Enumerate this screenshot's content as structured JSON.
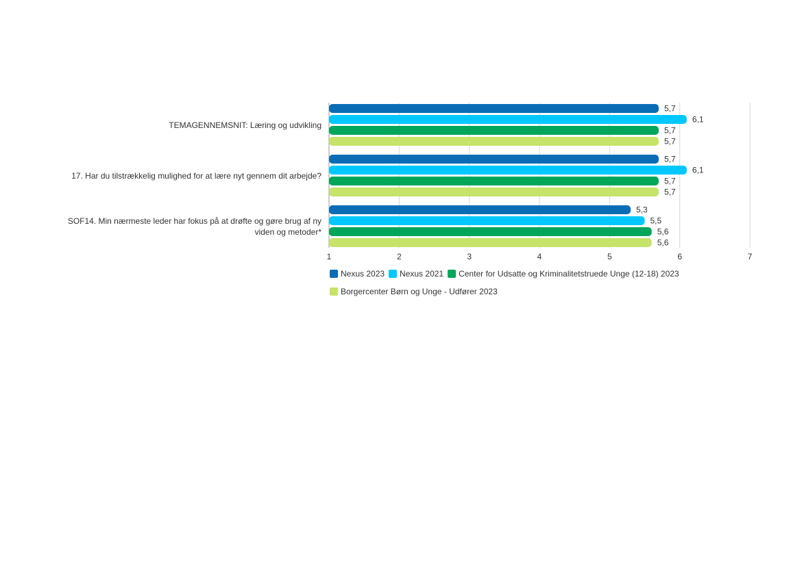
{
  "chart_data": {
    "type": "bar",
    "orientation": "horizontal",
    "categories": [
      [
        "TEMAGENNEMSNIT: Læring og udvikling"
      ],
      [
        "17. Har du tilstrækkelig mulighed for at lære nyt gennem dit arbejde?"
      ],
      [
        "SOF14. Min nærmeste leder har fokus på at drøfte og gøre brug af ny",
        "viden og metoder*"
      ]
    ],
    "series": [
      {
        "name": "Nexus 2023",
        "color": "#0a6cb4",
        "values": [
          5.7,
          5.7,
          5.3
        ],
        "labels": [
          "5,7",
          "5,7",
          "5,3"
        ]
      },
      {
        "name": "Nexus 2021",
        "color": "#00c8ff",
        "values": [
          6.1,
          6.1,
          5.5
        ],
        "labels": [
          "6,1",
          "6,1",
          "5,5"
        ]
      },
      {
        "name": "Center for Udsatte og Kriminalitetstruede Unge (12-18) 2023",
        "color": "#00a65a",
        "values": [
          5.7,
          5.7,
          5.6
        ],
        "labels": [
          "5,7",
          "5,7",
          "5,6"
        ]
      },
      {
        "name": "Borgercenter Børn og Unge - Udfører 2023",
        "color": "#c6e36a",
        "values": [
          5.7,
          5.7,
          5.6
        ],
        "labels": [
          "5,7",
          "5,7",
          "5,6"
        ]
      }
    ],
    "xlim": [
      1,
      7
    ],
    "ticks": [
      "1",
      "2",
      "3",
      "4",
      "5",
      "6",
      "7"
    ],
    "grid": true,
    "legend": "bottom"
  }
}
